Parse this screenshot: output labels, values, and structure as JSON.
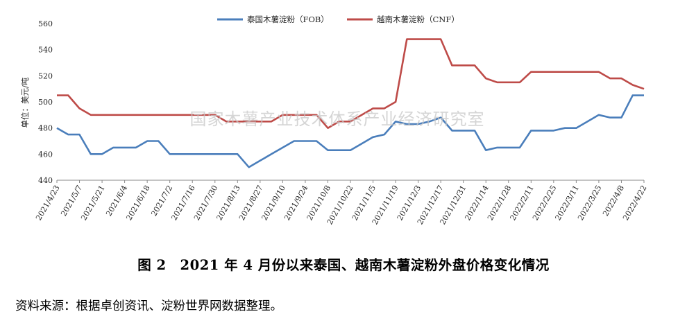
{
  "chart_data": {
    "type": "line",
    "ylabel": "单位：美元/吨",
    "ylim": [
      440,
      560
    ],
    "yticks": [
      440,
      460,
      480,
      500,
      520,
      540,
      560
    ],
    "grid": false,
    "legend_position": "top-center",
    "x_tick_labels": [
      "2021/4/23",
      "2021/5/7",
      "2021/5/21",
      "2021/6/4",
      "2021/6/18",
      "2021/7/2",
      "2021/7/16",
      "2021/7/30",
      "2021/8/13",
      "2021/8/27",
      "2021/9/10",
      "2021/9/24",
      "2021/10/8",
      "2021/10/22",
      "2021/11/5",
      "2021/11/19",
      "2021/12/3",
      "2021/12/17",
      "2021/12/31",
      "2022/1/14",
      "2022/1/28",
      "2022/2/11",
      "2022/2/25",
      "2022/3/11",
      "2022/3/25",
      "2022/4/8",
      "2022/4/22"
    ],
    "x": [
      "2021/4/23",
      "2021/4/30",
      "2021/5/7",
      "2021/5/14",
      "2021/5/21",
      "2021/5/28",
      "2021/6/4",
      "2021/6/11",
      "2021/6/18",
      "2021/6/25",
      "2021/7/2",
      "2021/7/9",
      "2021/7/16",
      "2021/7/23",
      "2021/7/30",
      "2021/8/6",
      "2021/8/13",
      "2021/8/20",
      "2021/8/27",
      "2021/9/3",
      "2021/9/10",
      "2021/9/17",
      "2021/9/24",
      "2021/10/1",
      "2021/10/8",
      "2021/10/15",
      "2021/10/22",
      "2021/10/29",
      "2021/11/5",
      "2021/11/12",
      "2021/11/19",
      "2021/11/26",
      "2021/12/3",
      "2021/12/10",
      "2021/12/17",
      "2021/12/24",
      "2021/12/31",
      "2022/1/7",
      "2022/1/14",
      "2022/1/21",
      "2022/1/28",
      "2022/2/4",
      "2022/2/11",
      "2022/2/18",
      "2022/2/25",
      "2022/3/4",
      "2022/3/11",
      "2022/3/18",
      "2022/3/25",
      "2022/4/1",
      "2022/4/8",
      "2022/4/15",
      "2022/4/22"
    ],
    "series": [
      {
        "name": "泰国木薯淀粉（FOB）",
        "color": "#4a7ebb",
        "values": [
          480,
          475,
          475,
          460,
          460,
          465,
          465,
          465,
          470,
          470,
          460,
          460,
          460,
          460,
          460,
          460,
          460,
          450,
          455,
          460,
          465,
          470,
          470,
          470,
          463,
          463,
          463,
          468,
          473,
          475,
          485,
          483,
          483,
          485,
          488,
          478,
          478,
          478,
          463,
          465,
          465,
          465,
          478,
          478,
          478,
          480,
          480,
          485,
          490,
          488,
          488,
          505,
          505
        ]
      },
      {
        "name": "越南木薯淀粉（CNF）",
        "color": "#be4b48",
        "values": [
          505,
          505,
          495,
          490,
          490,
          490,
          490,
          490,
          490,
          490,
          490,
          490,
          490,
          490,
          490,
          485,
          485,
          485,
          485,
          485,
          490,
          490,
          490,
          490,
          480,
          485,
          485,
          490,
          495,
          495,
          500,
          548,
          548,
          548,
          548,
          528,
          528,
          528,
          518,
          515,
          515,
          515,
          523,
          523,
          523,
          523,
          523,
          523,
          523,
          518,
          518,
          513,
          510
        ]
      }
    ]
  },
  "watermark": "国家木薯产业技术体系产业经济研究室",
  "caption": "图 2　2021 年 4 月份以来泰国、越南木薯淀粉外盘价格变化情况",
  "source": "资料来源：根据卓创资讯、淀粉世界网数据整理。"
}
